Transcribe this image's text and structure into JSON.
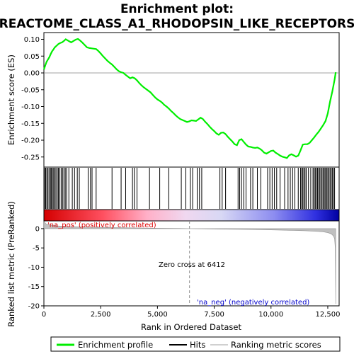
{
  "chart_data": {
    "type": "line",
    "title_line1": "Enrichment plot:",
    "title_line2": "REACTOME_CLASS_A1_RHODOPSIN_LIKE_RECEPTORS",
    "xlabel": "Rank in Ordered Dataset",
    "ylabel_top": "Enrichment score (ES)",
    "ylabel_bottom": "Ranked list metric (PreRanked)",
    "xlim": [
      0,
      13000
    ],
    "x_ticks": [
      0,
      2500,
      5000,
      7500,
      10000,
      12500
    ],
    "x_tick_labels": [
      "0",
      "2,500",
      "5,000",
      "7,500",
      "10,000",
      "12,500"
    ],
    "es_ylim": [
      -0.28,
      0.12
    ],
    "es_ticks": [
      0.1,
      0.05,
      0.0,
      -0.05,
      -0.1,
      -0.15,
      -0.2,
      -0.25
    ],
    "es_tick_labels": [
      "0.10",
      "0.05",
      "0.00",
      "-0.05",
      "-0.10",
      "-0.15",
      "-0.20",
      "-0.25"
    ],
    "metric_ylim": [
      -20,
      2
    ],
    "metric_ticks": [
      0,
      -5,
      -10,
      -15,
      -20
    ],
    "zero_cross_rank": 6412,
    "zero_cross_label": "Zero cross at 6412",
    "pos_label": "'na_pos' (positively correlated)",
    "neg_label": "'na_neg' (negatively correlated)",
    "series": [
      {
        "name": "Enrichment profile",
        "color": "#00ee00",
        "x": [
          0,
          60,
          120,
          180,
          240,
          300,
          360,
          420,
          480,
          560,
          640,
          720,
          800,
          880,
          960,
          1040,
          1120,
          1200,
          1300,
          1400,
          1500,
          1600,
          1700,
          1800,
          1900,
          2000,
          2100,
          2200,
          2300,
          2400,
          2500,
          2600,
          2700,
          2800,
          2900,
          3000,
          3100,
          3200,
          3300,
          3400,
          3500,
          3600,
          3700,
          3800,
          3900,
          4000,
          4100,
          4200,
          4300,
          4400,
          4500,
          4600,
          4700,
          4800,
          4900,
          5000,
          5100,
          5200,
          5300,
          5400,
          5500,
          5600,
          5700,
          5800,
          5900,
          6000,
          6100,
          6200,
          6300,
          6400,
          6500,
          6600,
          6700,
          6800,
          6900,
          7000,
          7100,
          7200,
          7300,
          7400,
          7500,
          7600,
          7700,
          7800,
          7900,
          8000,
          8100,
          8200,
          8300,
          8400,
          8500,
          8600,
          8700,
          8800,
          8900,
          9000,
          9100,
          9200,
          9300,
          9400,
          9500,
          9600,
          9700,
          9800,
          9900,
          10000,
          10100,
          10200,
          10300,
          10400,
          10500,
          10600,
          10700,
          10800,
          10900,
          11000,
          11100,
          11200,
          11300,
          11400,
          11500,
          11600,
          11700,
          11800,
          11900,
          12000,
          12100,
          12200,
          12300,
          12400,
          12500,
          12600,
          12700,
          12800,
          12850
        ],
        "y": [
          0.01,
          0.022,
          0.033,
          0.04,
          0.047,
          0.056,
          0.064,
          0.07,
          0.076,
          0.081,
          0.086,
          0.089,
          0.091,
          0.095,
          0.1,
          0.097,
          0.094,
          0.091,
          0.095,
          0.099,
          0.101,
          0.096,
          0.09,
          0.083,
          0.076,
          0.074,
          0.073,
          0.072,
          0.071,
          0.065,
          0.058,
          0.05,
          0.043,
          0.036,
          0.03,
          0.025,
          0.018,
          0.011,
          0.005,
          0.002,
          0.0,
          -0.006,
          -0.011,
          -0.016,
          -0.013,
          -0.016,
          -0.022,
          -0.03,
          -0.037,
          -0.043,
          -0.048,
          -0.053,
          -0.058,
          -0.066,
          -0.073,
          -0.079,
          -0.083,
          -0.088,
          -0.095,
          -0.1,
          -0.106,
          -0.113,
          -0.119,
          -0.126,
          -0.132,
          -0.137,
          -0.14,
          -0.143,
          -0.146,
          -0.144,
          -0.141,
          -0.142,
          -0.143,
          -0.138,
          -0.133,
          -0.137,
          -0.145,
          -0.152,
          -0.16,
          -0.167,
          -0.173,
          -0.18,
          -0.184,
          -0.178,
          -0.177,
          -0.182,
          -0.19,
          -0.197,
          -0.204,
          -0.212,
          -0.215,
          -0.2,
          -0.197,
          -0.205,
          -0.213,
          -0.219,
          -0.22,
          -0.222,
          -0.223,
          -0.222,
          -0.225,
          -0.23,
          -0.237,
          -0.24,
          -0.236,
          -0.232,
          -0.231,
          -0.237,
          -0.241,
          -0.246,
          -0.249,
          -0.251,
          -0.253,
          -0.245,
          -0.242,
          -0.245,
          -0.249,
          -0.246,
          -0.23,
          -0.213,
          -0.212,
          -0.212,
          -0.208,
          -0.2,
          -0.192,
          -0.183,
          -0.175,
          -0.165,
          -0.155,
          -0.143,
          -0.12,
          -0.085,
          -0.055,
          -0.02,
          0.002
        ]
      },
      {
        "name": "Hits",
        "color": "#000000",
        "x": [
          40,
          80,
          130,
          180,
          230,
          290,
          330,
          380,
          430,
          480,
          530,
          590,
          640,
          700,
          760,
          820,
          880,
          940,
          1000,
          1100,
          1250,
          1350,
          1470,
          1560,
          1950,
          2050,
          2120,
          2300,
          3000,
          3400,
          3600,
          3900,
          3980,
          4100,
          4650,
          5100,
          5500,
          6050,
          6250,
          6450,
          6550,
          6750,
          6850,
          6950,
          7750,
          7850,
          8000,
          8550,
          8620,
          8700,
          8800,
          8900,
          9100,
          9200,
          9400,
          9550,
          9850,
          9950,
          10050,
          10150,
          10250,
          10400,
          10600,
          10750,
          10850,
          10950,
          11050,
          11200,
          11300,
          11350,
          11400,
          11450,
          11500,
          11550,
          11650,
          11750,
          11850,
          11900,
          11950,
          12000,
          12050,
          12100,
          12150,
          12200,
          12250,
          12300,
          12350,
          12400,
          12450,
          12500,
          12550,
          12600,
          12650,
          12700,
          12750,
          12800
        ]
      },
      {
        "name": "Ranking metric scores",
        "color": "#c0c0c0",
        "x": [
          0,
          100,
          300,
          600,
          1000,
          2000,
          3000,
          4000,
          5000,
          6000,
          6412,
          7000,
          8000,
          9000,
          10000,
          11000,
          11500,
          12000,
          12300,
          12500,
          12650,
          12750,
          12800,
          12830,
          12850
        ],
        "y": [
          1.8,
          1.2,
          0.9,
          0.7,
          0.55,
          0.4,
          0.28,
          0.18,
          0.1,
          0.03,
          0.0,
          -0.06,
          -0.14,
          -0.22,
          -0.32,
          -0.45,
          -0.55,
          -0.7,
          -0.85,
          -1.05,
          -1.35,
          -1.9,
          -2.6,
          -5.0,
          -19.5
        ]
      }
    ],
    "legend": {
      "placement": "bottom",
      "items": [
        {
          "label": "Enrichment profile",
          "color": "#00ee00"
        },
        {
          "label": "Hits",
          "color": "#000000"
        },
        {
          "label": "Ranking metric scores",
          "color": "#c0c0c0"
        }
      ]
    }
  }
}
